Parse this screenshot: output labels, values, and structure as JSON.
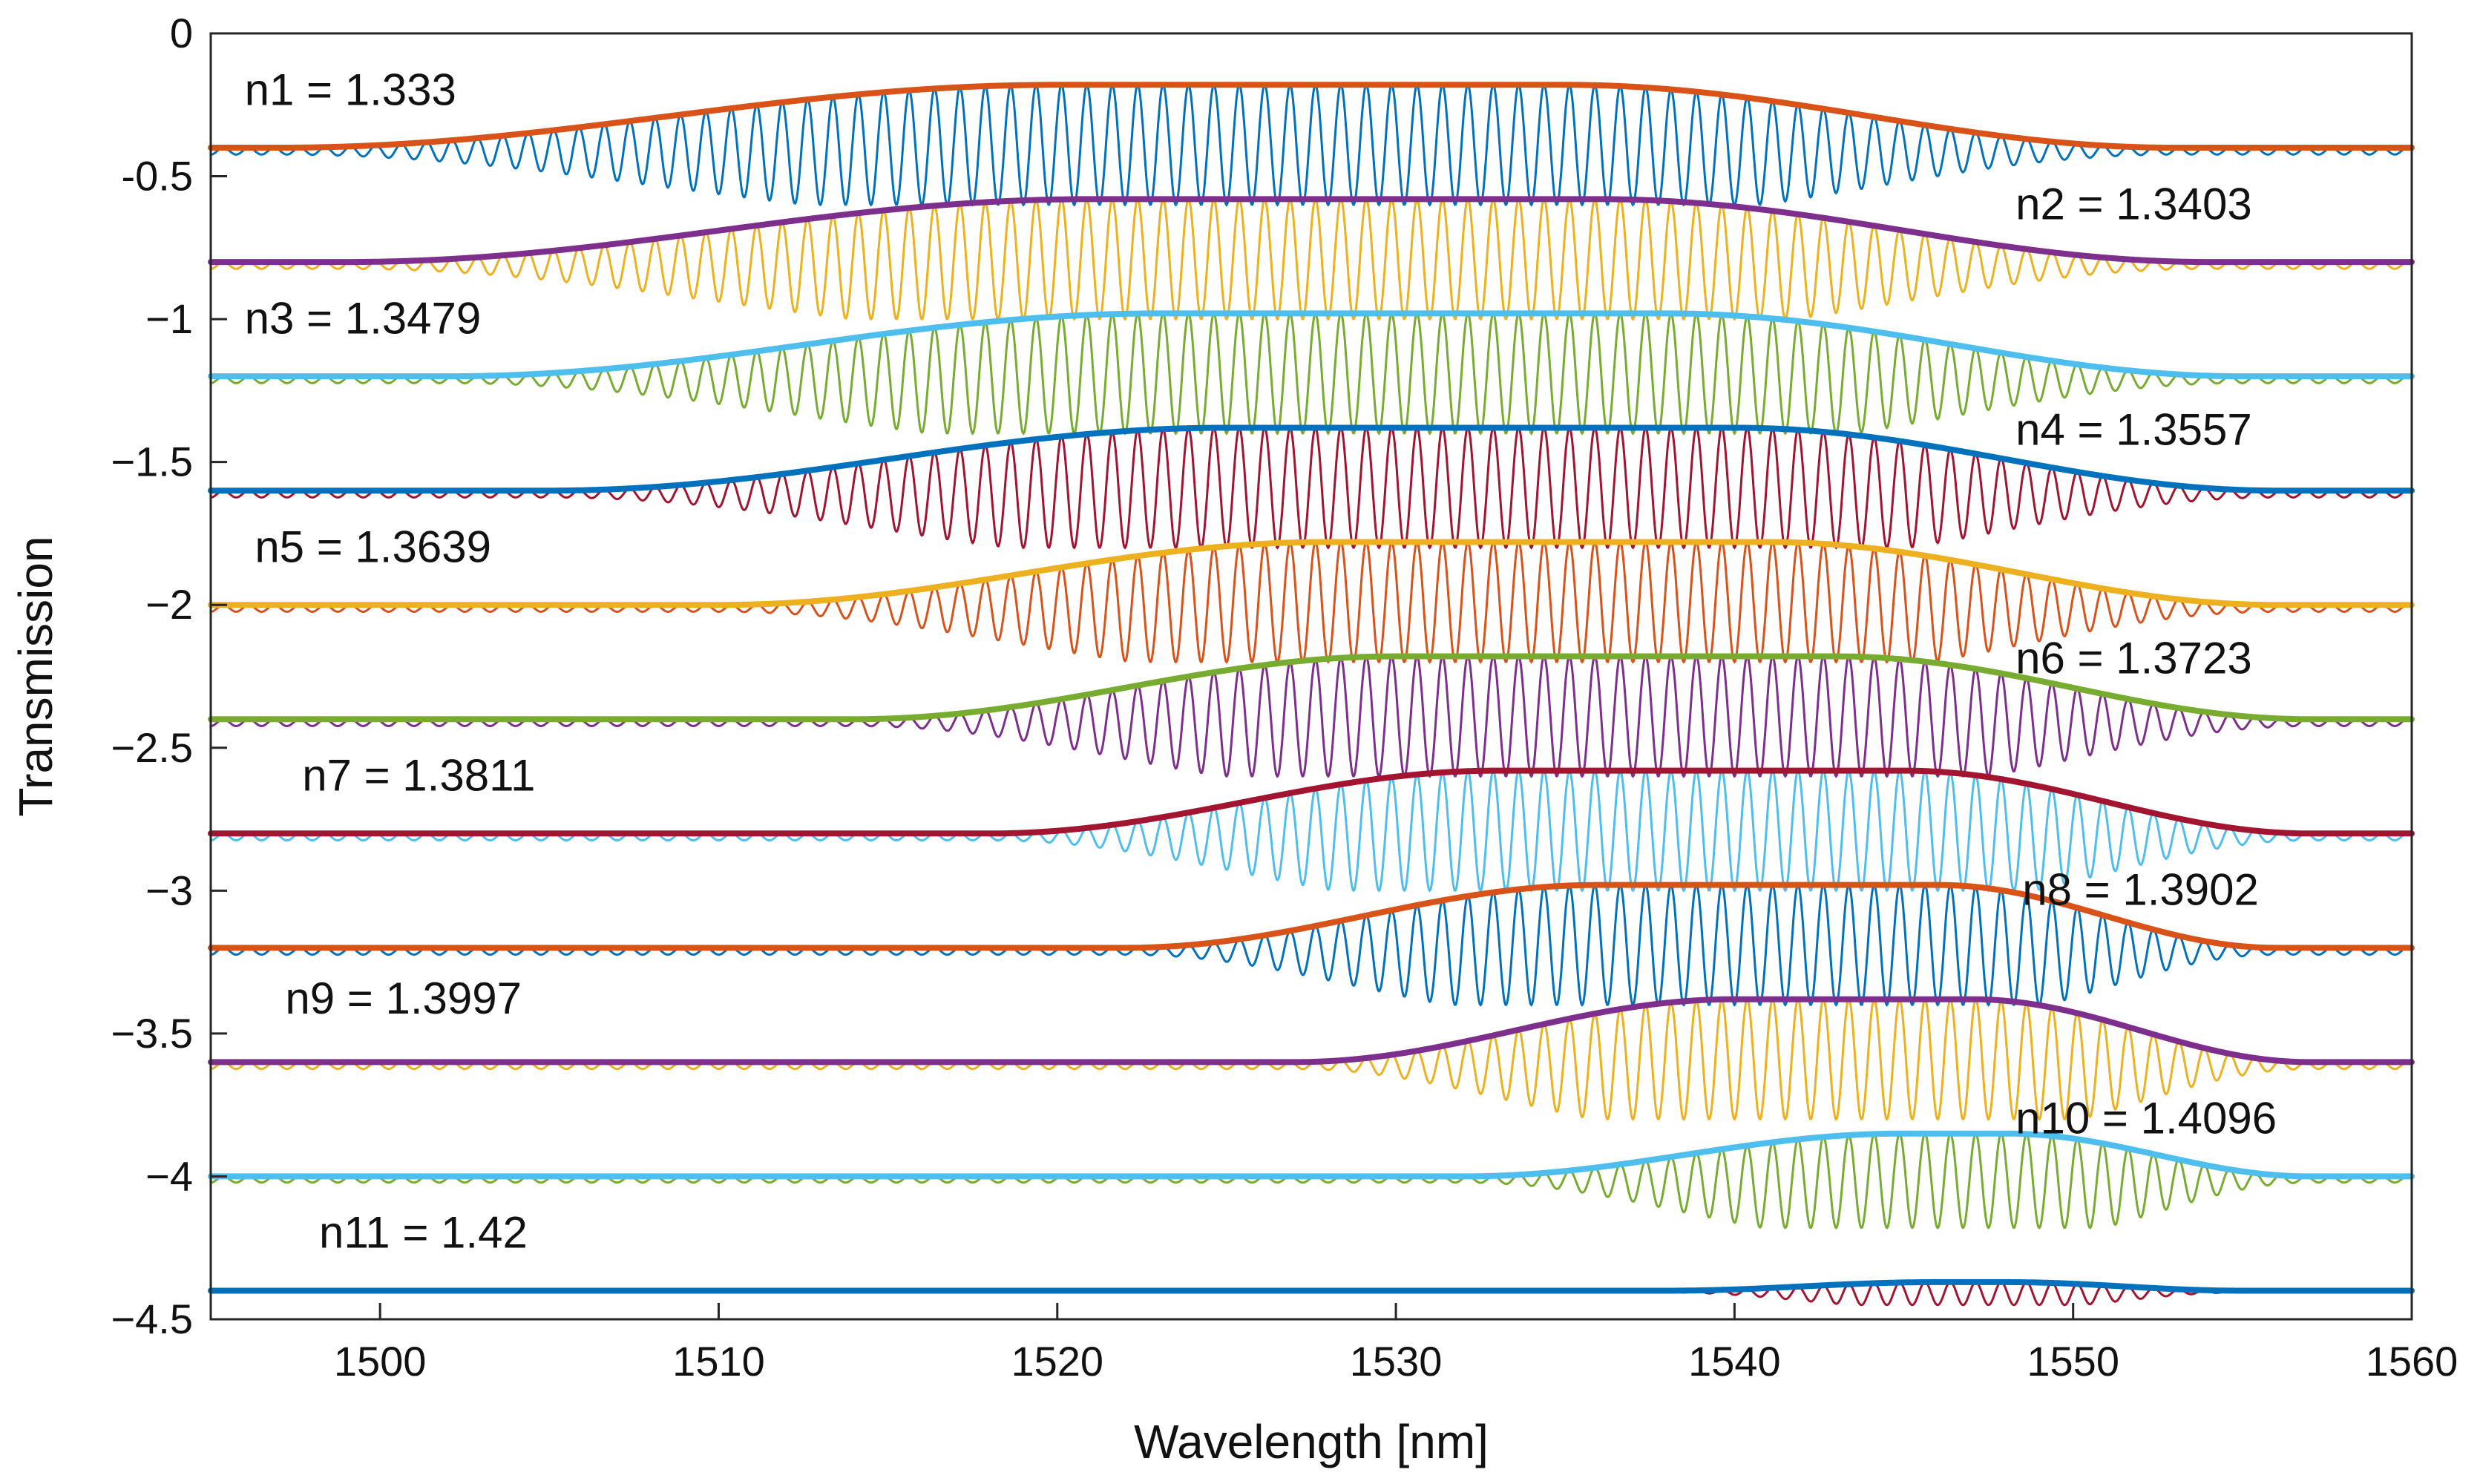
{
  "chart_data": {
    "type": "line",
    "title": "",
    "xlabel": "Wavelength [nm]",
    "ylabel": "Transmission",
    "xlim": [
      1495,
      1560
    ],
    "ylim": [
      -4.5,
      0
    ],
    "x_ticks": [
      1500,
      1510,
      1520,
      1530,
      1540,
      1550,
      1560
    ],
    "x_tick_labels": [
      "1500",
      "1510",
      "1520",
      "1530",
      "1540",
      "1550",
      "1560"
    ],
    "y_ticks": [
      0,
      -0.5,
      -1,
      -1.5,
      -2,
      -2.5,
      -3,
      -3.5,
      -4,
      -4.5
    ],
    "y_tick_labels": [
      "0",
      "-0.5",
      "−1",
      "−1.5",
      "−2",
      "−2.5",
      "−3",
      "−3.5",
      "−4",
      "−4.5"
    ],
    "grid": false,
    "fringe_period_nm": 0.75,
    "series": [
      {
        "name": "n1 = 1.333",
        "baseline": -0.4,
        "envelope_peak": 0.22,
        "rise_start": 1497,
        "rise_end": 1520,
        "fall_start": 1535,
        "fall_end": 1553,
        "fringe_depth": 0.2,
        "envelope_color": "#d95319",
        "spectrum_color": "#0072bd",
        "label_x": 1496,
        "label_y": -0.25
      },
      {
        "name": "n2 = 1.3403",
        "baseline": -0.8,
        "envelope_peak": 0.22,
        "rise_start": 1499,
        "rise_end": 1521,
        "fall_start": 1536,
        "fall_end": 1554,
        "fringe_depth": 0.2,
        "envelope_color": "#7e2f8e",
        "spectrum_color": "#edb120",
        "label_x": 1548.3,
        "label_y": -0.65
      },
      {
        "name": "n3 = 1.3479",
        "baseline": -1.2,
        "envelope_peak": 0.22,
        "rise_start": 1502,
        "rise_end": 1523,
        "fall_start": 1538,
        "fall_end": 1555,
        "fringe_depth": 0.2,
        "envelope_color": "#4dbeee",
        "spectrum_color": "#77ac30",
        "label_x": 1496,
        "label_y": -1.05
      },
      {
        "name": "n4 = 1.3557",
        "baseline": -1.6,
        "envelope_peak": 0.22,
        "rise_start": 1505,
        "rise_end": 1525,
        "fall_start": 1540,
        "fall_end": 1556,
        "fringe_depth": 0.2,
        "envelope_color": "#0072bd",
        "spectrum_color": "#a2142f",
        "label_x": 1548.3,
        "label_y": -1.44
      },
      {
        "name": "n5 = 1.3639",
        "baseline": -2.0,
        "envelope_peak": 0.22,
        "rise_start": 1510,
        "rise_end": 1528,
        "fall_start": 1541,
        "fall_end": 1556,
        "fringe_depth": 0.2,
        "envelope_color": "#edb120",
        "spectrum_color": "#d95319",
        "label_x": 1496.3,
        "label_y": -1.85
      },
      {
        "name": "n6 = 1.3723",
        "baseline": -2.4,
        "envelope_peak": 0.22,
        "rise_start": 1514,
        "rise_end": 1530,
        "fall_start": 1543,
        "fall_end": 1557,
        "fringe_depth": 0.2,
        "envelope_color": "#77ac30",
        "spectrum_color": "#7e2f8e",
        "label_x": 1548.3,
        "label_y": -2.24
      },
      {
        "name": "n7 = 1.3811",
        "baseline": -2.8,
        "envelope_peak": 0.22,
        "rise_start": 1518,
        "rise_end": 1533,
        "fall_start": 1545,
        "fall_end": 1557,
        "fringe_depth": 0.2,
        "envelope_color": "#a2142f",
        "spectrum_color": "#4dbeee",
        "label_x": 1497.7,
        "label_y": -2.65
      },
      {
        "name": "n8 = 1.3902",
        "baseline": -3.2,
        "envelope_peak": 0.22,
        "rise_start": 1522,
        "rise_end": 1536,
        "fall_start": 1546,
        "fall_end": 1556,
        "fringe_depth": 0.2,
        "envelope_color": "#d95319",
        "spectrum_color": "#0072bd",
        "label_x": 1548.5,
        "label_y": -3.05
      },
      {
        "name": "n9 = 1.3997",
        "baseline": -3.6,
        "envelope_peak": 0.22,
        "rise_start": 1527,
        "rise_end": 1540,
        "fall_start": 1547,
        "fall_end": 1557,
        "fringe_depth": 0.2,
        "envelope_color": "#7e2f8e",
        "spectrum_color": "#edb120",
        "label_x": 1497.2,
        "label_y": -3.43
      },
      {
        "name": "n10 = 1.4096",
        "baseline": -4.0,
        "envelope_peak": 0.15,
        "rise_start": 1532,
        "rise_end": 1545,
        "fall_start": 1548,
        "fall_end": 1557,
        "fringe_depth": 0.18,
        "envelope_color": "#4dbeee",
        "spectrum_color": "#77ac30",
        "label_x": 1548.3,
        "label_y": -3.85
      },
      {
        "name": "n11 = 1.42",
        "baseline": -4.4,
        "envelope_peak": 0.03,
        "rise_start": 1538,
        "rise_end": 1546,
        "fall_start": 1548,
        "fall_end": 1555,
        "fringe_depth": 0.05,
        "envelope_color": "#0072bd",
        "spectrum_color": "#a2142f",
        "label_x": 1498.2,
        "label_y": -4.25
      }
    ]
  }
}
